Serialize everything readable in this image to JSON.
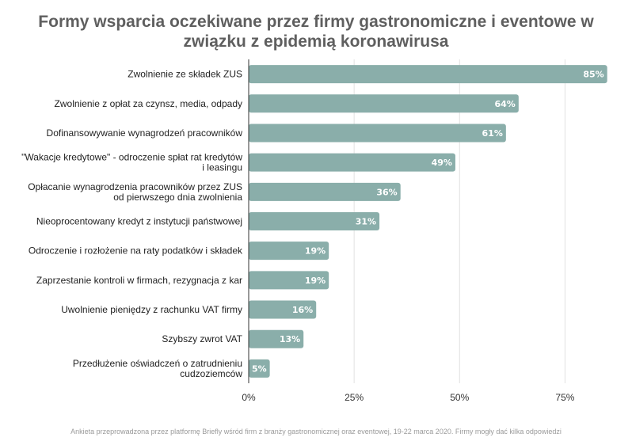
{
  "chart_data": {
    "type": "bar",
    "orientation": "horizontal",
    "title": "Formy wsparcia oczekiwane przez firmy gastronomiczne i eventowe w związku z epidemią koronawirusa",
    "footnote": "Ankieta przeprowadzona przez platformę Briefly wśród firm z branży gastronomicznej oraz eventowej, 19-22 marca 2020. Firmy mogły dać kilka odpowiedzi",
    "categories": [
      [
        "Zwolnienie ze składek ZUS"
      ],
      [
        "Zwolnienie z opłat za czynsz, media, odpady"
      ],
      [
        "Dofinansowywanie wynagrodzeń pracowników"
      ],
      [
        "\"Wakacje kredytowe\" - odroczenie spłat rat kredytów",
        "i leasingu"
      ],
      [
        "Opłacanie wynagrodzenia pracowników przez ZUS",
        "od pierwszego dnia zwolnienia"
      ],
      [
        "Nieoprocentowany kredyt z instytucji państwowej"
      ],
      [
        "Odroczenie i rozłożenie na raty podatków i składek"
      ],
      [
        "Zaprzestanie kontroli w firmach, rezygnacja z kar"
      ],
      [
        "Uwolnienie pieniędzy z rachunku VAT firmy"
      ],
      [
        "Szybszy zwrot VAT"
      ],
      [
        "Przedłużenie oświadczeń o zatrudnieniu",
        "cudzoziemców"
      ]
    ],
    "values": [
      85,
      64,
      61,
      49,
      36,
      31,
      19,
      19,
      16,
      13,
      5
    ],
    "data_labels": [
      "85%",
      "64%",
      "61%",
      "49%",
      "36%",
      "31%",
      "19%",
      "19%",
      "16%",
      "13%",
      "5%"
    ],
    "xticks": [
      0,
      25,
      50,
      75
    ],
    "xtick_labels": [
      "0%",
      "25%",
      "50%",
      "75%"
    ],
    "xlim": [
      0,
      86
    ],
    "grid": true,
    "bar_color": "#8aaeaa",
    "label_color": "#ffffff"
  }
}
